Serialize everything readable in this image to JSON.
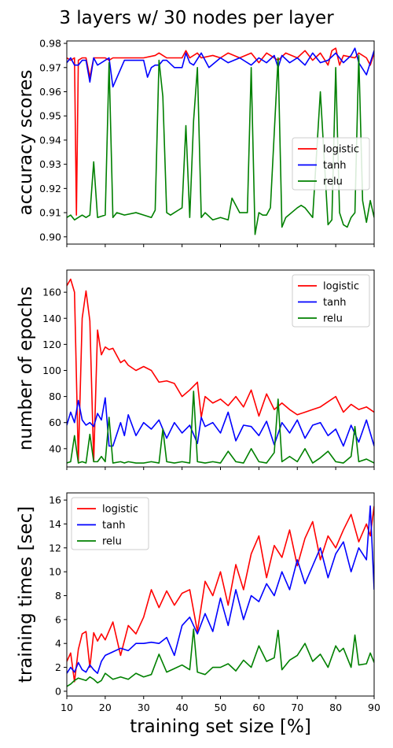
{
  "figure": {
    "title": "3 layers w/ 30 nodes per layer"
  },
  "chart_data": [
    {
      "type": "line",
      "ylabel": "accuracy scores",
      "xlabel": "",
      "xlim": [
        10,
        90
      ],
      "ylim": [
        0.897,
        0.981
      ],
      "xticks": [
        10,
        20,
        30,
        40,
        50,
        60,
        70,
        80,
        90
      ],
      "yticks": [
        0.9,
        0.91,
        0.92,
        0.93,
        0.94,
        0.95,
        0.96,
        0.97,
        0.98
      ],
      "ytick_labels": [
        "0.90",
        "0.91",
        "0.92",
        "0.93",
        "0.94",
        "0.95",
        "0.96",
        "0.97",
        "0.98"
      ],
      "show_xtick_labels": false,
      "legend": "center-right",
      "series": [
        {
          "name": "logistic",
          "color": "#ff0000",
          "x": [
            10,
            11,
            12,
            12.5,
            13,
            14,
            15,
            16,
            17,
            20,
            21,
            22,
            25,
            30,
            33,
            34,
            35,
            36,
            38,
            40,
            41,
            42,
            44,
            45,
            48,
            50,
            52,
            55,
            58,
            60,
            62,
            65,
            67,
            70,
            72,
            74,
            76,
            78,
            79,
            80,
            81,
            82,
            85,
            86,
            88,
            89,
            90
          ],
          "y": [
            0.974,
            0.973,
            0.974,
            0.909,
            0.973,
            0.974,
            0.974,
            0.966,
            0.974,
            0.974,
            0.973,
            0.974,
            0.974,
            0.974,
            0.975,
            0.976,
            0.975,
            0.974,
            0.974,
            0.974,
            0.977,
            0.974,
            0.976,
            0.974,
            0.975,
            0.974,
            0.976,
            0.974,
            0.976,
            0.972,
            0.976,
            0.973,
            0.976,
            0.974,
            0.977,
            0.973,
            0.976,
            0.971,
            0.977,
            0.978,
            0.971,
            0.975,
            0.974,
            0.976,
            0.974,
            0.971,
            0.976
          ]
        },
        {
          "name": "tanh",
          "color": "#0000ff",
          "x": [
            10,
            11,
            12,
            13,
            14,
            15,
            16,
            17,
            18,
            20,
            21,
            22,
            25,
            30,
            31,
            32,
            33,
            34,
            35,
            36,
            38,
            40,
            41,
            42,
            43,
            45,
            47,
            50,
            52,
            55,
            58,
            60,
            62,
            64,
            65,
            66,
            68,
            70,
            72,
            74,
            76,
            78,
            80,
            82,
            84,
            85,
            86,
            88,
            90
          ],
          "y": [
            0.972,
            0.974,
            0.971,
            0.971,
            0.973,
            0.973,
            0.964,
            0.974,
            0.971,
            0.973,
            0.974,
            0.962,
            0.973,
            0.973,
            0.966,
            0.97,
            0.971,
            0.971,
            0.973,
            0.973,
            0.97,
            0.97,
            0.976,
            0.972,
            0.971,
            0.976,
            0.97,
            0.974,
            0.972,
            0.974,
            0.971,
            0.974,
            0.972,
            0.975,
            0.97,
            0.975,
            0.972,
            0.974,
            0.971,
            0.976,
            0.972,
            0.973,
            0.976,
            0.972,
            0.975,
            0.978,
            0.972,
            0.967,
            0.977
          ]
        },
        {
          "name": "relu",
          "color": "#008000",
          "x": [
            10,
            11,
            12,
            13,
            14,
            15,
            16,
            17,
            18,
            20,
            21,
            22,
            23,
            25,
            28,
            30,
            32,
            33,
            34,
            35,
            36,
            37,
            38,
            39,
            40,
            41,
            42,
            43,
            44,
            45,
            46,
            48,
            50,
            52,
            53,
            55,
            57,
            58,
            59,
            60,
            61,
            62,
            63,
            65,
            66,
            67,
            70,
            71,
            72,
            74,
            76,
            78,
            79,
            80,
            81,
            82,
            83,
            84,
            85,
            86,
            87,
            88,
            89,
            90
          ],
          "y": [
            0.908,
            0.909,
            0.907,
            0.908,
            0.909,
            0.908,
            0.909,
            0.931,
            0.908,
            0.909,
            0.972,
            0.908,
            0.91,
            0.909,
            0.91,
            0.909,
            0.908,
            0.911,
            0.973,
            0.958,
            0.91,
            0.909,
            0.91,
            0.911,
            0.912,
            0.946,
            0.908,
            0.948,
            0.97,
            0.908,
            0.91,
            0.907,
            0.908,
            0.907,
            0.916,
            0.91,
            0.91,
            0.97,
            0.901,
            0.91,
            0.909,
            0.909,
            0.912,
            0.974,
            0.904,
            0.908,
            0.912,
            0.913,
            0.912,
            0.908,
            0.96,
            0.905,
            0.907,
            0.97,
            0.91,
            0.905,
            0.904,
            0.908,
            0.91,
            0.975,
            0.915,
            0.906,
            0.915,
            0.908
          ]
        }
      ]
    },
    {
      "type": "line",
      "ylabel": "number of epochs",
      "xlabel": "",
      "xlim": [
        10,
        90
      ],
      "ylim": [
        26,
        177
      ],
      "xticks": [
        10,
        20,
        30,
        40,
        50,
        60,
        70,
        80,
        90
      ],
      "yticks": [
        40,
        60,
        80,
        100,
        120,
        140,
        160
      ],
      "ytick_labels": [
        "40",
        "60",
        "80",
        "100",
        "120",
        "140",
        "160"
      ],
      "show_xtick_labels": false,
      "legend": "top-right",
      "series": [
        {
          "name": "logistic",
          "color": "#ff0000",
          "x": [
            10,
            11,
            12,
            13,
            14,
            15,
            16,
            17,
            18,
            19,
            20,
            21,
            22,
            24,
            25,
            26,
            28,
            30,
            32,
            34,
            36,
            38,
            40,
            42,
            44,
            45,
            46,
            48,
            50,
            52,
            54,
            56,
            58,
            60,
            62,
            64,
            66,
            68,
            70,
            72,
            74,
            76,
            78,
            80,
            82,
            84,
            86,
            88,
            90
          ],
          "y": [
            165,
            170,
            160,
            30,
            140,
            161,
            138,
            30,
            131,
            112,
            118,
            116,
            117,
            106,
            108,
            104,
            100,
            103,
            100,
            91,
            92,
            90,
            80,
            85,
            91,
            64,
            80,
            75,
            78,
            73,
            80,
            72,
            85,
            65,
            82,
            70,
            75,
            70,
            66,
            68,
            70,
            72,
            76,
            80,
            68,
            74,
            70,
            72,
            68
          ]
        },
        {
          "name": "tanh",
          "color": "#0000ff",
          "x": [
            10,
            11,
            12,
            13,
            14,
            15,
            16,
            17,
            18,
            19,
            20,
            21,
            22,
            24,
            25,
            26,
            28,
            30,
            32,
            34,
            36,
            38,
            40,
            42,
            44,
            45,
            46,
            48,
            50,
            52,
            54,
            56,
            58,
            60,
            62,
            64,
            66,
            68,
            70,
            72,
            74,
            76,
            78,
            80,
            82,
            84,
            86,
            88,
            90
          ],
          "y": [
            58,
            68,
            60,
            77,
            62,
            58,
            60,
            57,
            67,
            62,
            79,
            42,
            42,
            60,
            50,
            66,
            50,
            60,
            55,
            62,
            48,
            60,
            52,
            58,
            44,
            64,
            57,
            60,
            52,
            68,
            46,
            58,
            57,
            50,
            61,
            43,
            60,
            52,
            62,
            48,
            58,
            60,
            50,
            55,
            42,
            58,
            45,
            62,
            42
          ]
        },
        {
          "name": "relu",
          "color": "#008000",
          "x": [
            10,
            11,
            12,
            13,
            14,
            15,
            16,
            17,
            18,
            19,
            20,
            21,
            22,
            24,
            25,
            26,
            28,
            30,
            32,
            34,
            35,
            36,
            38,
            40,
            42,
            43,
            44,
            46,
            48,
            50,
            52,
            54,
            56,
            58,
            60,
            62,
            64,
            65,
            66,
            68,
            70,
            72,
            74,
            76,
            78,
            80,
            82,
            84,
            85,
            86,
            88,
            90
          ],
          "y": [
            29,
            30,
            50,
            29,
            30,
            29,
            51,
            30,
            30,
            34,
            30,
            64,
            29,
            30,
            29,
            30,
            29,
            29,
            30,
            29,
            55,
            30,
            29,
            30,
            29,
            84,
            30,
            29,
            30,
            29,
            38,
            30,
            29,
            40,
            30,
            29,
            37,
            78,
            30,
            34,
            30,
            40,
            29,
            33,
            38,
            30,
            29,
            34,
            57,
            30,
            32,
            29
          ]
        }
      ]
    },
    {
      "type": "line",
      "ylabel": "training times [sec]",
      "xlabel": "training set size [%]",
      "xlim": [
        10,
        90
      ],
      "ylim": [
        -0.4,
        16.6
      ],
      "xticks": [
        10,
        20,
        30,
        40,
        50,
        60,
        70,
        80,
        90
      ],
      "xtick_labels": [
        "10",
        "20",
        "30",
        "40",
        "50",
        "60",
        "70",
        "80",
        "90"
      ],
      "yticks": [
        0,
        2,
        4,
        6,
        8,
        10,
        12,
        14,
        16
      ],
      "ytick_labels": [
        "0",
        "2",
        "4",
        "6",
        "8",
        "10",
        "12",
        "14",
        "16"
      ],
      "show_xtick_labels": true,
      "legend": "top-left",
      "series": [
        {
          "name": "logistic",
          "color": "#ff0000",
          "x": [
            10,
            11,
            12,
            13,
            14,
            15,
            16,
            17,
            18,
            19,
            20,
            22,
            24,
            26,
            28,
            30,
            32,
            34,
            36,
            38,
            40,
            42,
            44,
            46,
            48,
            50,
            52,
            54,
            56,
            58,
            60,
            62,
            64,
            66,
            68,
            70,
            72,
            74,
            76,
            78,
            80,
            82,
            84,
            86,
            88,
            89,
            90
          ],
          "y": [
            2.5,
            3.2,
            0.8,
            3.5,
            4.8,
            5.0,
            2.0,
            4.9,
            4.2,
            4.8,
            4.3,
            5.8,
            3.0,
            5.5,
            4.8,
            6.2,
            8.5,
            7.0,
            8.4,
            7.2,
            8.2,
            8.5,
            5.0,
            9.2,
            8.0,
            10.0,
            7.2,
            10.6,
            8.5,
            11.5,
            13.0,
            9.5,
            12.2,
            11.2,
            13.5,
            10.5,
            12.8,
            14.2,
            11.0,
            13.0,
            12.0,
            13.5,
            14.8,
            12.5,
            14.0,
            13.0,
            15.5
          ]
        },
        {
          "name": "tanh",
          "color": "#0000ff",
          "x": [
            10,
            11,
            12,
            13,
            14,
            15,
            16,
            17,
            18,
            19,
            20,
            22,
            24,
            26,
            28,
            30,
            32,
            34,
            36,
            38,
            40,
            42,
            44,
            46,
            48,
            50,
            52,
            54,
            56,
            58,
            60,
            62,
            64,
            66,
            68,
            70,
            72,
            74,
            76,
            78,
            80,
            82,
            84,
            86,
            88,
            89,
            90
          ],
          "y": [
            1.5,
            2.0,
            1.6,
            2.4,
            1.8,
            1.6,
            2.2,
            1.8,
            1.5,
            2.5,
            3.0,
            3.3,
            3.6,
            3.4,
            4.0,
            4.0,
            4.1,
            4.0,
            4.5,
            3.0,
            5.5,
            6.2,
            4.8,
            6.5,
            5.0,
            7.8,
            5.5,
            8.5,
            6.0,
            8.0,
            7.5,
            9.0,
            8.0,
            10.0,
            8.5,
            11.0,
            9.0,
            10.5,
            12.0,
            9.5,
            11.5,
            12.5,
            10.0,
            12.0,
            11.0,
            15.5,
            8.5
          ]
        },
        {
          "name": "relu",
          "color": "#008000",
          "x": [
            10,
            11,
            12,
            13,
            14,
            15,
            16,
            17,
            18,
            19,
            20,
            22,
            24,
            26,
            28,
            30,
            32,
            34,
            36,
            38,
            40,
            42,
            43,
            44,
            46,
            48,
            50,
            52,
            54,
            56,
            58,
            60,
            62,
            64,
            65,
            66,
            68,
            70,
            72,
            74,
            76,
            78,
            80,
            81,
            82,
            84,
            85,
            86,
            88,
            89,
            90
          ],
          "y": [
            0.4,
            0.6,
            0.9,
            1.1,
            1.0,
            0.9,
            1.2,
            1.0,
            0.7,
            0.9,
            1.5,
            1.0,
            1.2,
            1.0,
            1.5,
            1.2,
            1.4,
            3.1,
            1.6,
            1.9,
            2.2,
            1.8,
            5.2,
            1.6,
            1.4,
            2.0,
            2.0,
            2.3,
            1.7,
            2.6,
            2.0,
            3.8,
            2.5,
            2.8,
            5.1,
            1.8,
            2.6,
            3.0,
            4.0,
            2.5,
            3.1,
            2.0,
            3.8,
            3.3,
            3.6,
            2.0,
            4.7,
            2.2,
            2.3,
            3.2,
            2.4
          ]
        }
      ]
    }
  ]
}
